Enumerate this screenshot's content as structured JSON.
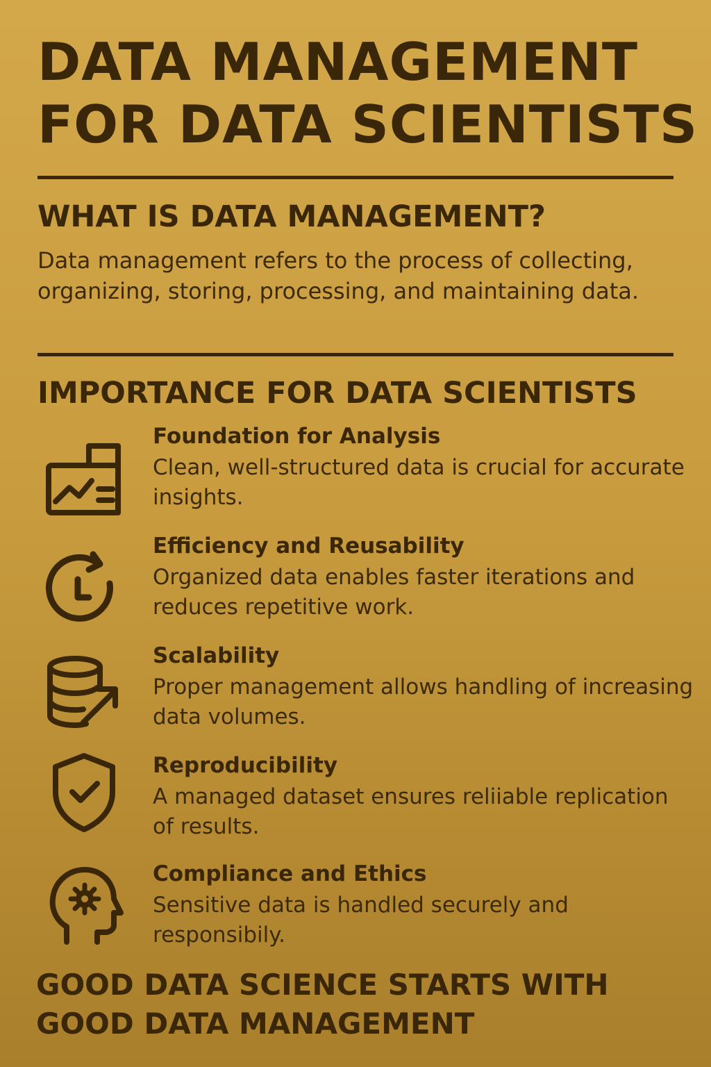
{
  "title": {
    "line1": "DATA MANAGEMENT",
    "line2": "FOR DATA SCIENTISTS"
  },
  "what_is": {
    "heading": "WHAT IS DATA MANAGEMENT?",
    "text": "Data management refers to the process of collecting, organizing, storing, processing, and maintaining data."
  },
  "importance": {
    "heading": "IMPORTANCE FOR DATA SCIENTISTS",
    "items": [
      {
        "icon": "chart-document-icon",
        "title": "Foundation for Analysis",
        "text": "Clean, well-structured data is crucial for accurate insights."
      },
      {
        "icon": "clock-refresh-icon",
        "title": "Efficiency and Reusability",
        "text": "Organized data enables faster iterations and reduces repetitive work."
      },
      {
        "icon": "database-arrow-icon",
        "title": "Scalability",
        "text": "Proper management allows handling of increasing data volumes."
      },
      {
        "icon": "shield-check-icon",
        "title": "Reproducibility",
        "text": "A managed dataset ensures reliiable replication of results."
      },
      {
        "icon": "head-gear-icon",
        "title": "Compliance and Ethics",
        "text": "Sensitive data is handled securely and responsibily."
      }
    ]
  },
  "footer": {
    "line1": "GOOD DATA SCIENCE STARTS WITH",
    "line2": "GOOD DATA MANAGEMENT"
  },
  "colors": {
    "background_top": "#d3a84a",
    "background_bottom": "#a97f2c",
    "ink": "#3a2709"
  }
}
